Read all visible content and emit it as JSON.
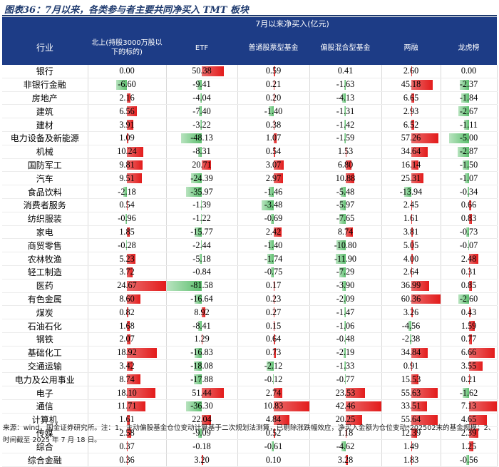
{
  "title": "图表36：7月以来，各类参与者主要共同净买入 TMT 板块",
  "header": {
    "group_label": "7月以来净买入(亿元)",
    "row_label": "行业",
    "columns": [
      "北上(持股3000万股以下的标的)",
      "ETF",
      "普通股票型基金",
      "偏股混合型基金",
      "两融",
      "龙虎榜"
    ]
  },
  "rows": [
    {
      "name": "银行",
      "values": [
        0.0,
        50.38,
        0.59,
        0.41,
        2.6,
        0.0
      ]
    },
    {
      "name": "非银行金融",
      "values": [
        -6.6,
        -9.41,
        0.21,
        -1.63,
        45.18,
        -2.37
      ]
    },
    {
      "name": "房地产",
      "values": [
        2.16,
        -4.04,
        0.2,
        -4.13,
        6.65,
        -1.84
      ]
    },
    {
      "name": "建筑",
      "values": [
        6.56,
        -7.4,
        -1.4,
        -1.31,
        2.93,
        -2.67
      ]
    },
    {
      "name": "建材",
      "values": [
        3.91,
        -3.22,
        0.38,
        -1.42,
        6.52,
        -1.11
      ]
    },
    {
      "name": "电力设备及新能源",
      "values": [
        1.09,
        -48.13,
        1.07,
        -1.59,
        57.26,
        -5.0
      ]
    },
    {
      "name": "机械",
      "values": [
        10.24,
        -8.31,
        0.54,
        1.53,
        34.64,
        -2.87
      ]
    },
    {
      "name": "国防军工",
      "values": [
        9.81,
        20.71,
        3.07,
        6.8,
        16.14,
        -1.5
      ]
    },
    {
      "name": "汽车",
      "values": [
        9.51,
        -24.39,
        2.97,
        10.88,
        25.31,
        -1.07
      ]
    },
    {
      "name": "食品饮料",
      "values": [
        -2.18,
        -35.97,
        -1.46,
        -5.48,
        -13.94,
        -0.34
      ]
    },
    {
      "name": "消费者服务",
      "values": [
        0.54,
        -1.39,
        -3.48,
        -5.97,
        2.45,
        0.66
      ]
    },
    {
      "name": "纺织服装",
      "values": [
        -0.96,
        -1.22,
        -0.69,
        -7.65,
        1.61,
        0.83
      ]
    },
    {
      "name": "家电",
      "values": [
        1.85,
        -15.77,
        2.42,
        8.74,
        3.81,
        -0.73
      ]
    },
    {
      "name": "商贸零售",
      "values": [
        -0.28,
        -2.44,
        -1.4,
        -10.8,
        5.05,
        -0.07
      ]
    },
    {
      "name": "农林牧渔",
      "values": [
        5.23,
        -5.18,
        -1.74,
        -11.9,
        4.0,
        2.48
      ]
    },
    {
      "name": "轻工制造",
      "values": [
        3.72,
        -0.84,
        -0.75,
        -7.29,
        2.64,
        0.31
      ]
    },
    {
      "name": "医药",
      "values": [
        24.67,
        -81.58,
        0.17,
        -3.9,
        36.99,
        0.85
      ]
    },
    {
      "name": "有色金属",
      "values": [
        8.6,
        -16.64,
        0.23,
        -2.09,
        60.36,
        -2.6
      ]
    },
    {
      "name": "煤炭",
      "values": [
        0.82,
        8.92,
        0.27,
        -1.47,
        3.26,
        0.43
      ]
    },
    {
      "name": "石油石化",
      "values": [
        1.68,
        -8.41,
        0.15,
        -1.06,
        -4.56,
        1.59
      ]
    },
    {
      "name": "钢铁",
      "values": [
        2.07,
        1.29,
        0.64,
        -0.48,
        -2.38,
        0.77
      ]
    },
    {
      "name": "基础化工",
      "values": [
        18.92,
        -16.83,
        0.73,
        -2.19,
        34.84,
        6.66
      ]
    },
    {
      "name": "交通运输",
      "values": [
        3.42,
        -18.08,
        -2.12,
        -1.33,
        0.91,
        3.55
      ]
    },
    {
      "name": "电力及公用事业",
      "values": [
        8.74,
        -17.88,
        -0.12,
        -0.77,
        15.53,
        0.21
      ]
    },
    {
      "name": "电子",
      "values": [
        18.1,
        51.44,
        2.74,
        23.53,
        55.63,
        -1.62
      ]
    },
    {
      "name": "通信",
      "values": [
        11.71,
        -36.3,
        10.83,
        42.46,
        33.51,
        7.13
      ]
    },
    {
      "name": "计算机",
      "values": [
        1.61,
        22.04,
        4.84,
        20.25,
        55.64,
        4.65
      ]
    },
    {
      "name": "传媒",
      "values": [
        2.58,
        -9.09,
        0.52,
        1.18,
        12.39,
        2.39
      ]
    },
    {
      "name": "综合",
      "values": [
        0.37,
        -0.18,
        -0.61,
        -4.62,
        1.49,
        1.25
      ]
    },
    {
      "name": "综合金融",
      "values": [
        0.36,
        3.2,
        0.1,
        3.28,
        1.83,
        -0.56
      ]
    }
  ],
  "source": "来源：wind，国金证券研究所。注：1、主动偏股基金仓位变动计算基于二次规划法测算，已剔除涨跌幅效应，净买入金额为仓位变动*202502末的基金规模；2、时间截至 2025 年 7 月 18 日。",
  "colors": {
    "header_bg": "#1d3c86",
    "positive": "#e31b1b",
    "negative": "#5cbf6e",
    "title": "#1e3a6e"
  }
}
